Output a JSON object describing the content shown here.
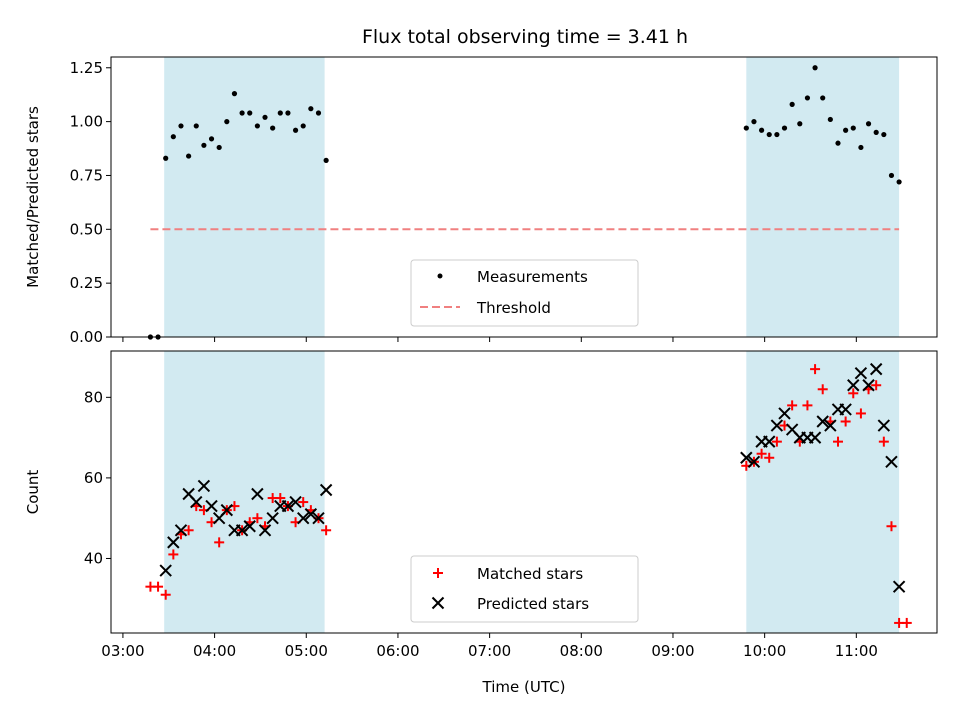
{
  "title": "Flux total observing time = 3.41 h",
  "xlabel": "Time (UTC)",
  "chart_data": [
    {
      "type": "scatter",
      "ylabel": "Matched/Predicted stars",
      "ylim": [
        0,
        1.3
      ],
      "yticks": [
        "0.00",
        "0.25",
        "0.50",
        "0.75",
        "1.00",
        "1.25"
      ],
      "xticks": [
        "03:00",
        "04:00",
        "05:00",
        "06:00",
        "07:00",
        "08:00",
        "09:00",
        "10:00",
        "11:00"
      ],
      "observing_windows": [
        [
          "03:27",
          "05:12"
        ],
        [
          "09:48",
          "11:28"
        ]
      ],
      "window_color": "#add8e6",
      "series": [
        {
          "name": "Measurements",
          "color": "#000000",
          "marker": "dot",
          "x": [
            "03:18",
            "03:23",
            "03:28",
            "03:33",
            "03:38",
            "03:43",
            "03:48",
            "03:53",
            "03:58",
            "04:03",
            "04:08",
            "04:13",
            "04:18",
            "04:23",
            "04:28",
            "04:33",
            "04:38",
            "04:43",
            "04:48",
            "04:53",
            "04:58",
            "05:03",
            "05:08",
            "05:13",
            "09:48",
            "09:53",
            "09:58",
            "10:03",
            "10:08",
            "10:13",
            "10:18",
            "10:23",
            "10:28",
            "10:33",
            "10:38",
            "10:43",
            "10:48",
            "10:53",
            "10:58",
            "11:03",
            "11:08",
            "11:13",
            "11:18",
            "11:23",
            "11:28"
          ],
          "y": [
            0.0,
            0.0,
            0.83,
            0.93,
            0.98,
            0.84,
            0.98,
            0.89,
            0.92,
            0.88,
            1.0,
            1.13,
            1.04,
            1.04,
            0.98,
            1.02,
            0.97,
            1.04,
            1.04,
            0.96,
            0.98,
            1.06,
            1.04,
            0.82,
            0.97,
            1.0,
            0.96,
            0.94,
            0.94,
            0.97,
            1.08,
            0.99,
            1.11,
            1.25,
            1.11,
            1.01,
            0.9,
            0.96,
            0.97,
            0.88,
            0.99,
            0.95,
            0.94,
            0.75,
            0.72
          ]
        },
        {
          "name": "Threshold",
          "color": "#f08080",
          "style": "dashed",
          "x": [
            "03:18",
            "11:28"
          ],
          "y": [
            0.5,
            0.5
          ]
        }
      ]
    },
    {
      "type": "scatter",
      "ylabel": "Count",
      "ylim": [
        21.5,
        91.5
      ],
      "yticks": [
        "40",
        "60",
        "80"
      ],
      "xticks": [
        "03:00",
        "04:00",
        "05:00",
        "06:00",
        "07:00",
        "08:00",
        "09:00",
        "10:00",
        "11:00"
      ],
      "observing_windows": [
        [
          "03:27",
          "05:12"
        ],
        [
          "09:48",
          "11:28"
        ]
      ],
      "window_color": "#add8e6",
      "series": [
        {
          "name": "Matched stars",
          "color": "#ff0000",
          "marker": "plus",
          "x": [
            "03:18",
            "03:23",
            "03:28",
            "03:33",
            "03:38",
            "03:43",
            "03:48",
            "03:53",
            "03:58",
            "04:03",
            "04:08",
            "04:13",
            "04:18",
            "04:23",
            "04:28",
            "04:33",
            "04:38",
            "04:43",
            "04:48",
            "04:53",
            "04:58",
            "05:03",
            "05:08",
            "05:13",
            "09:48",
            "09:53",
            "09:58",
            "10:03",
            "10:08",
            "10:13",
            "10:18",
            "10:23",
            "10:28",
            "10:33",
            "10:38",
            "10:43",
            "10:48",
            "10:53",
            "10:58",
            "11:03",
            "11:08",
            "11:13",
            "11:18",
            "11:23",
            "11:28",
            "11:33"
          ],
          "y": [
            33,
            33,
            31,
            41,
            46,
            47,
            53,
            52,
            49,
            44,
            52,
            53,
            47,
            49,
            50,
            48,
            55,
            55,
            53,
            49,
            54,
            52,
            50,
            47,
            63,
            64,
            66,
            65,
            69,
            73,
            78,
            69,
            78,
            87,
            82,
            74,
            69,
            74,
            81,
            76,
            82,
            83,
            69,
            48,
            24,
            24
          ]
        },
        {
          "name": "Predicted stars",
          "color": "#000000",
          "marker": "x",
          "x": [
            "03:28",
            "03:33",
            "03:38",
            "03:43",
            "03:48",
            "03:53",
            "03:58",
            "04:03",
            "04:08",
            "04:13",
            "04:18",
            "04:23",
            "04:28",
            "04:33",
            "04:38",
            "04:43",
            "04:48",
            "04:53",
            "04:58",
            "05:03",
            "05:08",
            "05:13",
            "09:48",
            "09:53",
            "09:58",
            "10:03",
            "10:08",
            "10:13",
            "10:18",
            "10:23",
            "10:28",
            "10:33",
            "10:38",
            "10:43",
            "10:48",
            "10:53",
            "10:58",
            "11:03",
            "11:08",
            "11:13",
            "11:18",
            "11:23",
            "11:28"
          ],
          "y": [
            37,
            44,
            47,
            56,
            54,
            58,
            53,
            50,
            52,
            47,
            47,
            48,
            56,
            47,
            50,
            53,
            53,
            54,
            50,
            51,
            50,
            57,
            65,
            64,
            69,
            69,
            73,
            76,
            72,
            70,
            70,
            70,
            74,
            73,
            77,
            77,
            83,
            86,
            83,
            87,
            73,
            64,
            33
          ]
        }
      ]
    }
  ],
  "legend_top": [
    {
      "label": "Measurements"
    },
    {
      "label": "Threshold"
    }
  ],
  "legend_bottom": [
    {
      "label": "Matched stars"
    },
    {
      "label": "Predicted stars"
    }
  ]
}
